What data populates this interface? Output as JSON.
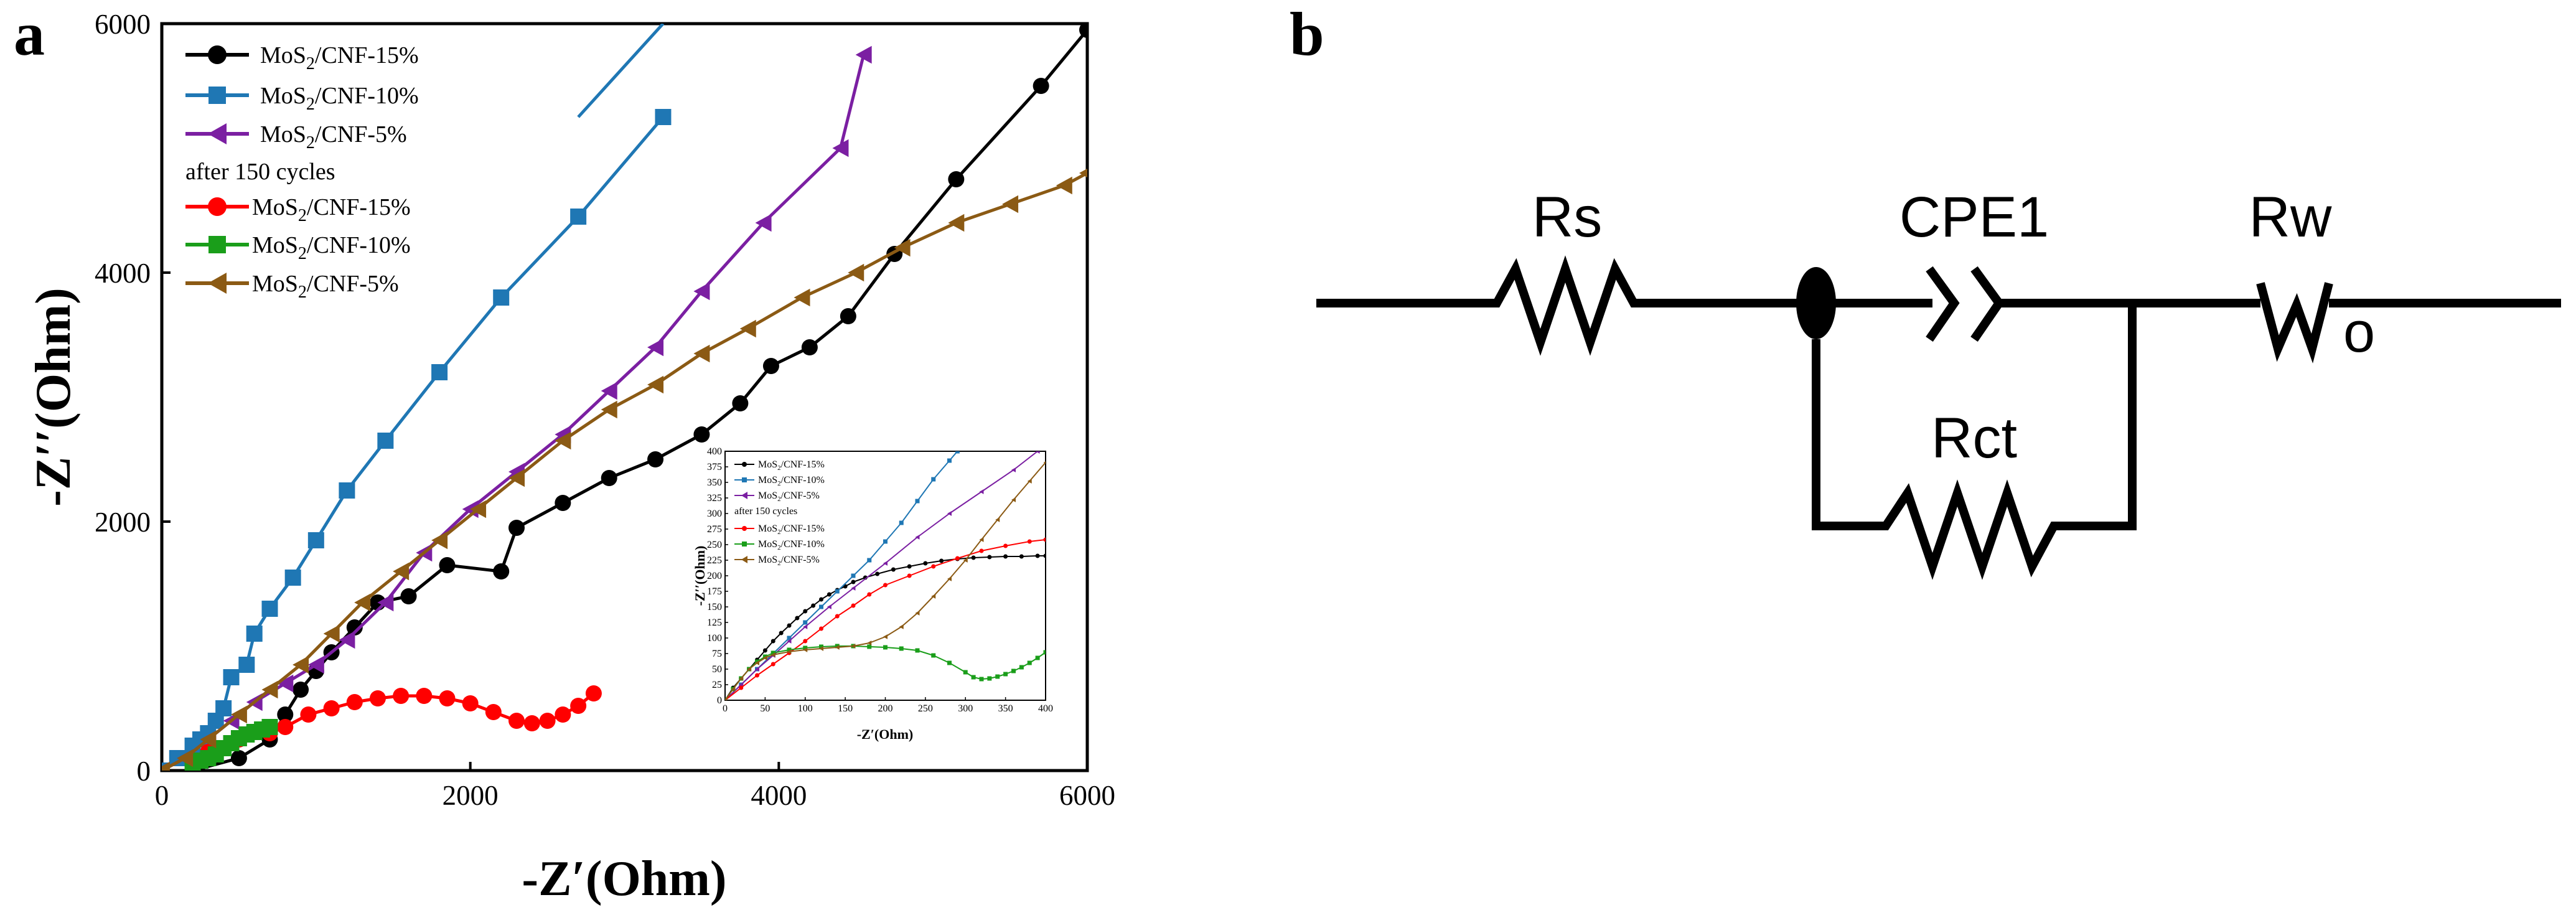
{
  "panels": {
    "a_label": "a",
    "b_label": "b"
  },
  "chart_data": [
    {
      "type": "scatter",
      "panel": "a",
      "title": "",
      "xlabel": "-Z′(Ohm)",
      "ylabel": "-Z′′(Ohm)",
      "xlim": [
        0,
        6000
      ],
      "ylim": [
        0,
        6000
      ],
      "xticks": [
        "0",
        "2000",
        "4000",
        "6000"
      ],
      "yticks": [
        "0",
        "2000",
        "4000",
        "6000"
      ],
      "legend_header": "after 150 cycles",
      "series": [
        {
          "name": "MoS2/CNF-15%",
          "label_main": "MoS",
          "label_sub": "2",
          "label_rest": "/CNF-15%",
          "color": "#000000",
          "marker": "circle",
          "x": [
            200,
            500,
            700,
            800,
            900,
            1000,
            1100,
            1250,
            1400,
            1600,
            1850,
            2200,
            2300,
            2600,
            2900,
            3200,
            3500,
            3750,
            3950,
            4200,
            4450,
            4750,
            5150,
            5700,
            6000
          ],
          "y": [
            0,
            100,
            250,
            450,
            650,
            800,
            950,
            1150,
            1350,
            1400,
            1650,
            1600,
            1950,
            2150,
            2350,
            2500,
            2700,
            2950,
            3250,
            3400,
            3650,
            4150,
            4750,
            5500,
            5950
          ]
        },
        {
          "name": "MoS2/CNF-10%",
          "label_main": "MoS",
          "label_sub": "2",
          "label_rest": "/CNF-10%",
          "color": "#1f77b4",
          "marker": "square",
          "x": [
            0,
            100,
            200,
            250,
            300,
            350,
            400,
            450,
            550,
            600,
            700,
            850,
            1000,
            1200,
            1450,
            1800,
            2200,
            2700,
            3250
          ],
          "y": [
            0,
            100,
            200,
            250,
            300,
            400,
            500,
            750,
            850,
            1100,
            1300,
            1550,
            1850,
            2250,
            2650,
            3200,
            3800,
            4450,
            5250
          ],
          "extend": [
            [
              2700,
              5250
            ],
            [
              3250,
              6000
            ]
          ]
        },
        {
          "name": "MoS2/CNF-5%",
          "label_main": "MoS",
          "label_sub": "2",
          "label_rest": "/CNF-5%",
          "color": "#7b1fa2",
          "marker": "triangle-left",
          "x": [
            0,
            150,
            300,
            450,
            600,
            800,
            1000,
            1200,
            1450,
            1700,
            2000,
            2300,
            2600,
            2900,
            3200,
            3500,
            3900,
            4400,
            4550
          ],
          "y": [
            0,
            100,
            250,
            400,
            550,
            700,
            850,
            1050,
            1350,
            1750,
            2100,
            2400,
            2700,
            3050,
            3400,
            3850,
            4400,
            5000,
            5750
          ]
        },
        {
          "name": "MoS2/CNF-15% after 150 cycles",
          "label_main": "MoS",
          "label_sub": "2",
          "label_rest": "/CNF-15%",
          "color": "#ff0000",
          "marker": "circle",
          "x": [
            300,
            500,
            700,
            800,
            950,
            1100,
            1250,
            1400,
            1550,
            1700,
            1850,
            2000,
            2150,
            2300,
            2400,
            2500,
            2600,
            2700,
            2800
          ],
          "y": [
            150,
            250,
            300,
            350,
            450,
            500,
            550,
            580,
            600,
            600,
            580,
            540,
            470,
            400,
            380,
            400,
            450,
            520,
            620
          ]
        },
        {
          "name": "MoS2/CNF-10% after 150 cycles",
          "label_main": "MoS",
          "label_sub": "2",
          "label_rest": "/CNF-10%",
          "color": "#1a9e1a",
          "marker": "square",
          "x": [
            200,
            250,
            300,
            350,
            400,
            450,
            500,
            550,
            600,
            650,
            700
          ],
          "y": [
            50,
            80,
            100,
            130,
            180,
            220,
            260,
            290,
            310,
            330,
            350
          ]
        },
        {
          "name": "MoS2/CNF-5% after 150 cycles",
          "label_main": "MoS",
          "label_sub": "2",
          "label_rest": "/CNF-5%",
          "color": "#8b5a14",
          "marker": "triangle-left",
          "x": [
            0,
            150,
            300,
            500,
            700,
            900,
            1100,
            1300,
            1550,
            1800,
            2050,
            2300,
            2600,
            2900,
            3200,
            3500,
            3800,
            4150,
            4500,
            4800,
            5150,
            5500,
            5850,
            6000
          ],
          "y": [
            0,
            100,
            250,
            450,
            650,
            850,
            1100,
            1350,
            1600,
            1850,
            2100,
            2350,
            2650,
            2900,
            3100,
            3350,
            3550,
            3800,
            4000,
            4200,
            4400,
            4550,
            4700,
            4800
          ]
        }
      ]
    },
    {
      "type": "scatter",
      "panel": "a-inset",
      "xlabel": "-Z′(Ohm)",
      "ylabel": "-Z′′(Ohm)",
      "xlim": [
        0,
        400
      ],
      "ylim": [
        0,
        400
      ],
      "xticks": [
        "0",
        "50",
        "100",
        "150",
        "200",
        "250",
        "300",
        "350",
        "400"
      ],
      "yticks": [
        "0",
        "25",
        "50",
        "75",
        "100",
        "125",
        "150",
        "175",
        "200",
        "225",
        "250",
        "275",
        "300",
        "325",
        "350",
        "375",
        "400"
      ],
      "legend_header": "after 150 cycles",
      "series": [
        {
          "name": "MoS2/CNF-15%",
          "color": "#000000",
          "x": [
            0,
            10,
            20,
            30,
            40,
            50,
            60,
            70,
            80,
            90,
            100,
            110,
            120,
            130,
            140,
            150,
            160,
            175,
            190,
            210,
            230,
            250,
            270,
            290,
            310,
            330,
            350,
            370,
            390,
            400
          ],
          "y": [
            0,
            20,
            35,
            50,
            65,
            80,
            95,
            108,
            120,
            132,
            143,
            152,
            162,
            170,
            177,
            183,
            190,
            197,
            203,
            210,
            215,
            220,
            224,
            227,
            229,
            230,
            231,
            231,
            232,
            232
          ]
        },
        {
          "name": "MoS2/CNF-10%",
          "color": "#1f77b4",
          "x": [
            0,
            20,
            40,
            60,
            80,
            100,
            120,
            140,
            160,
            180,
            200,
            220,
            240,
            260,
            280,
            290
          ],
          "y": [
            0,
            25,
            50,
            75,
            100,
            125,
            150,
            175,
            200,
            225,
            255,
            285,
            320,
            355,
            385,
            400
          ]
        },
        {
          "name": "MoS2/CNF-5%",
          "color": "#7b1fa2",
          "x": [
            0,
            20,
            40,
            60,
            80,
            100,
            130,
            160,
            200,
            240,
            280,
            320,
            360,
            390
          ],
          "y": [
            0,
            25,
            50,
            72,
            95,
            118,
            150,
            180,
            220,
            262,
            300,
            335,
            370,
            400
          ]
        },
        {
          "name": "MoS2/CNF-15% after 150 cycles",
          "color": "#ff0000",
          "x": [
            0,
            20,
            40,
            60,
            80,
            100,
            120,
            140,
            160,
            180,
            200,
            230,
            260,
            290,
            320,
            350,
            380,
            400
          ],
          "y": [
            0,
            20,
            40,
            58,
            76,
            95,
            115,
            135,
            152,
            170,
            185,
            200,
            215,
            228,
            240,
            248,
            255,
            258
          ]
        },
        {
          "name": "MoS2/CNF-10% after 150 cycles",
          "color": "#1a9e1a",
          "x": [
            0,
            10,
            20,
            30,
            40,
            50,
            60,
            80,
            100,
            120,
            140,
            160,
            180,
            200,
            220,
            240,
            260,
            280,
            300,
            310,
            320,
            330,
            340,
            350,
            360,
            370,
            380,
            390,
            400
          ],
          "y": [
            0,
            18,
            35,
            50,
            62,
            70,
            76,
            81,
            84,
            86,
            87,
            87,
            86,
            85,
            83,
            80,
            72,
            60,
            45,
            37,
            34,
            35,
            38,
            42,
            47,
            53,
            60,
            68,
            77
          ]
        },
        {
          "name": "MoS2/CNF-5% after 150 cycles",
          "color": "#8b5a14",
          "x": [
            0,
            10,
            20,
            30,
            40,
            50,
            60,
            80,
            100,
            120,
            140,
            160,
            180,
            200,
            220,
            240,
            260,
            280,
            300,
            320,
            340,
            360,
            380,
            400
          ],
          "y": [
            0,
            18,
            35,
            50,
            60,
            68,
            73,
            78,
            81,
            83,
            85,
            87,
            92,
            102,
            118,
            140,
            167,
            195,
            225,
            258,
            290,
            322,
            352,
            382
          ]
        }
      ]
    }
  ],
  "circuit": {
    "labels": {
      "rs": "Rs",
      "cpe": "CPE1",
      "rw": "Rw",
      "rct": "Rct",
      "warburg_main": "W",
      "warburg_sub": "o"
    }
  }
}
